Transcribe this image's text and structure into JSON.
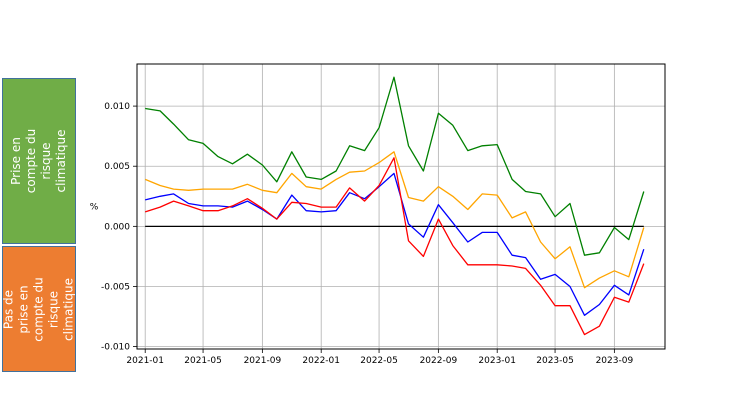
{
  "labels": {
    "green_box": "Prise en compte du risque climatique",
    "orange_box": "Pas de prise en compte du risque climatique"
  },
  "colors": {
    "green_box": "#70ad47",
    "orange_box": "#ed7d31",
    "green": "#008000",
    "orange": "#ffa500",
    "blue": "#0000ff",
    "red": "#ff0000",
    "zero_line": "#000000",
    "grid": "#b0b0b0"
  },
  "chart_data": {
    "type": "line",
    "title": "",
    "xlabel": "",
    "ylabel": "%",
    "grid": true,
    "legend": "none",
    "ylim": [
      -0.0102,
      0.0135
    ],
    "xlim": [
      "2020-12-15",
      "2023-12-15"
    ],
    "yticks": [
      "0.010",
      "0.005",
      "0.000",
      "-0.005",
      "-0.010"
    ],
    "ytick_values": [
      0.01,
      0.005,
      0.0,
      -0.005,
      -0.01
    ],
    "xticks": [
      "2021-01",
      "2021-05",
      "2021-09",
      "2022-01",
      "2022-05",
      "2022-09",
      "2023-01",
      "2023-05",
      "2023-09"
    ],
    "x": [
      "2021-01",
      "2021-02",
      "2021-03",
      "2021-04",
      "2021-05",
      "2021-06",
      "2021-07",
      "2021-08",
      "2021-09",
      "2021-10",
      "2021-11",
      "2021-12",
      "2022-01",
      "2022-02",
      "2022-03",
      "2022-04",
      "2022-05",
      "2022-06",
      "2022-07",
      "2022-08",
      "2022-09",
      "2022-10",
      "2022-11",
      "2022-12",
      "2023-01",
      "2023-02",
      "2023-03",
      "2023-04",
      "2023-05",
      "2023-06",
      "2023-07",
      "2023-08",
      "2023-09",
      "2023-10",
      "2023-11"
    ],
    "hline": 0.0,
    "series": [
      {
        "color": "#008000",
        "values": [
          0.0098,
          0.0096,
          0.0085,
          0.0072,
          0.0069,
          0.0058,
          0.0052,
          0.006,
          0.0051,
          0.0037,
          0.0062,
          0.0041,
          0.0039,
          0.0046,
          0.0067,
          0.0063,
          0.0082,
          0.0124,
          0.0067,
          0.0046,
          0.0094,
          0.0084,
          0.0063,
          0.0067,
          0.0068,
          0.0039,
          0.0029,
          0.0027,
          0.0008,
          0.0019,
          -0.0024,
          -0.0022,
          -0.0001,
          -0.0011,
          0.0029
        ]
      },
      {
        "color": "#ffa500",
        "values": [
          0.0039,
          0.0034,
          0.0031,
          0.003,
          0.0031,
          0.0031,
          0.0031,
          0.0035,
          0.003,
          0.0028,
          0.0044,
          0.0033,
          0.0031,
          0.0039,
          0.0045,
          0.0046,
          0.0053,
          0.0062,
          0.0024,
          0.0021,
          0.0033,
          0.0025,
          0.0014,
          0.0027,
          0.0026,
          0.0007,
          0.0012,
          -0.0013,
          -0.0027,
          -0.0017,
          -0.0051,
          -0.0043,
          -0.0037,
          -0.0042,
          -0.0001
        ]
      },
      {
        "color": "#0000ff",
        "values": [
          0.0022,
          0.0025,
          0.0027,
          0.0019,
          0.0017,
          0.0017,
          0.0016,
          0.0021,
          0.0014,
          0.0006,
          0.0026,
          0.0013,
          0.0012,
          0.0013,
          0.0028,
          0.0023,
          0.0033,
          0.0044,
          0.0002,
          -0.0009,
          0.0018,
          0.0003,
          -0.0013,
          -0.0005,
          -0.0005,
          -0.0024,
          -0.0026,
          -0.0044,
          -0.004,
          -0.005,
          -0.0074,
          -0.0065,
          -0.0049,
          -0.0057,
          -0.0019
        ]
      },
      {
        "color": "#ff0000",
        "values": [
          0.0012,
          0.0016,
          0.0021,
          0.0017,
          0.0013,
          0.0013,
          0.0017,
          0.0023,
          0.0015,
          0.0006,
          0.002,
          0.0019,
          0.0016,
          0.0016,
          0.0032,
          0.0021,
          0.0034,
          0.0057,
          -0.0012,
          -0.0025,
          0.0006,
          -0.0016,
          -0.0032,
          -0.0032,
          -0.0032,
          -0.0033,
          -0.0035,
          -0.0049,
          -0.0066,
          -0.0066,
          -0.009,
          -0.0083,
          -0.0059,
          -0.0063,
          -0.0031
        ]
      }
    ]
  }
}
